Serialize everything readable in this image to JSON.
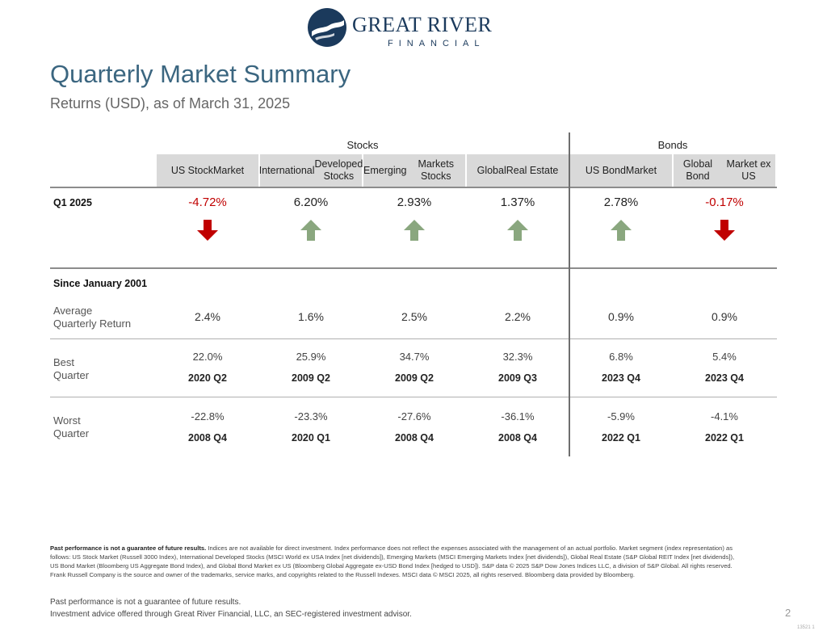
{
  "brand": {
    "name_line1": "GREAT RIVER",
    "name_line2": "FINANCIAL"
  },
  "header": {
    "title": "Quarterly Market Summary",
    "subtitle": "Returns (USD), as of March 31, 2025"
  },
  "table": {
    "groups": {
      "stocks": "Stocks",
      "bonds": "Bonds"
    },
    "columns": [
      {
        "line1": "US Stock",
        "line2": "Market"
      },
      {
        "line1": "International",
        "line2": "Developed Stocks"
      },
      {
        "line1": "Emerging",
        "line2": "Markets Stocks"
      },
      {
        "line1": "Global",
        "line2": "Real Estate"
      },
      {
        "line1": "US Bond",
        "line2": "Market"
      },
      {
        "line1": "Global Bond",
        "line2": "Market ex US"
      }
    ],
    "q1": {
      "label": "Q1 2025",
      "values": [
        "-4.72%",
        "6.20%",
        "2.93%",
        "1.37%",
        "2.78%",
        "-0.17%"
      ],
      "directions": [
        "down",
        "up",
        "up",
        "up",
        "up",
        "down"
      ]
    },
    "since_label": "Since January 2001",
    "average": {
      "label_line1": "Average",
      "label_line2": "Quarterly Return",
      "values": [
        "2.4%",
        "1.6%",
        "2.5%",
        "2.2%",
        "0.9%",
        "0.9%"
      ]
    },
    "best": {
      "label_line1": "Best",
      "label_line2": "Quarter",
      "values": [
        "22.0%",
        "25.9%",
        "34.7%",
        "32.3%",
        "6.8%",
        "5.4%"
      ],
      "quarters": [
        "2020 Q2",
        "2009 Q2",
        "2009 Q2",
        "2009 Q3",
        "2023 Q4",
        "2023 Q4"
      ]
    },
    "worst": {
      "label_line1": "Worst",
      "label_line2": "Quarter",
      "values": [
        "-22.8%",
        "-23.3%",
        "-27.6%",
        "-36.1%",
        "-5.9%",
        "-4.1%"
      ],
      "quarters": [
        "2008 Q4",
        "2020 Q1",
        "2008 Q4",
        "2008 Q4",
        "2022 Q1",
        "2022 Q1"
      ]
    }
  },
  "colors": {
    "negative": "#c00000",
    "arrow_down": "#c00000",
    "arrow_up": "#8aa77f",
    "title": "#3b6680"
  },
  "disclosure": {
    "bold": "Past performance is not a guarantee of future results.",
    "text": " Indices are not available for direct investment. Index performance does not reflect the expenses associated with the management of an actual portfolio. Market segment (index representation) as follows: US Stock Market (Russell 3000 Index), International Developed Stocks (MSCI World ex USA Index [net dividends]), Emerging Markets (MSCI Emerging Markets Index [net dividends]), Global Real Estate (S&P Global REIT Index [net dividends]), US Bond Market (Bloomberg US Aggregate Bond Index), and Global Bond Market ex US (Bloomberg Global Aggregate ex-USD Bond Index [hedged to USD]). S&P data © 2025 S&P Dow Jones Indices LLC, a division of S&P Global. All rights reserved. Frank Russell Company is the source and owner of the trademarks, service marks, and copyrights related to the Russell Indexes. MSCI data © MSCI 2025, all rights reserved. Bloomberg data provided by Bloomberg."
  },
  "footer": {
    "line1": "Past performance is not a guarantee of future results.",
    "line2": "Investment advice offered through Great River Financial, LLC, an SEC-registered investment advisor.",
    "page_number": "2",
    "code": "13521 1"
  }
}
